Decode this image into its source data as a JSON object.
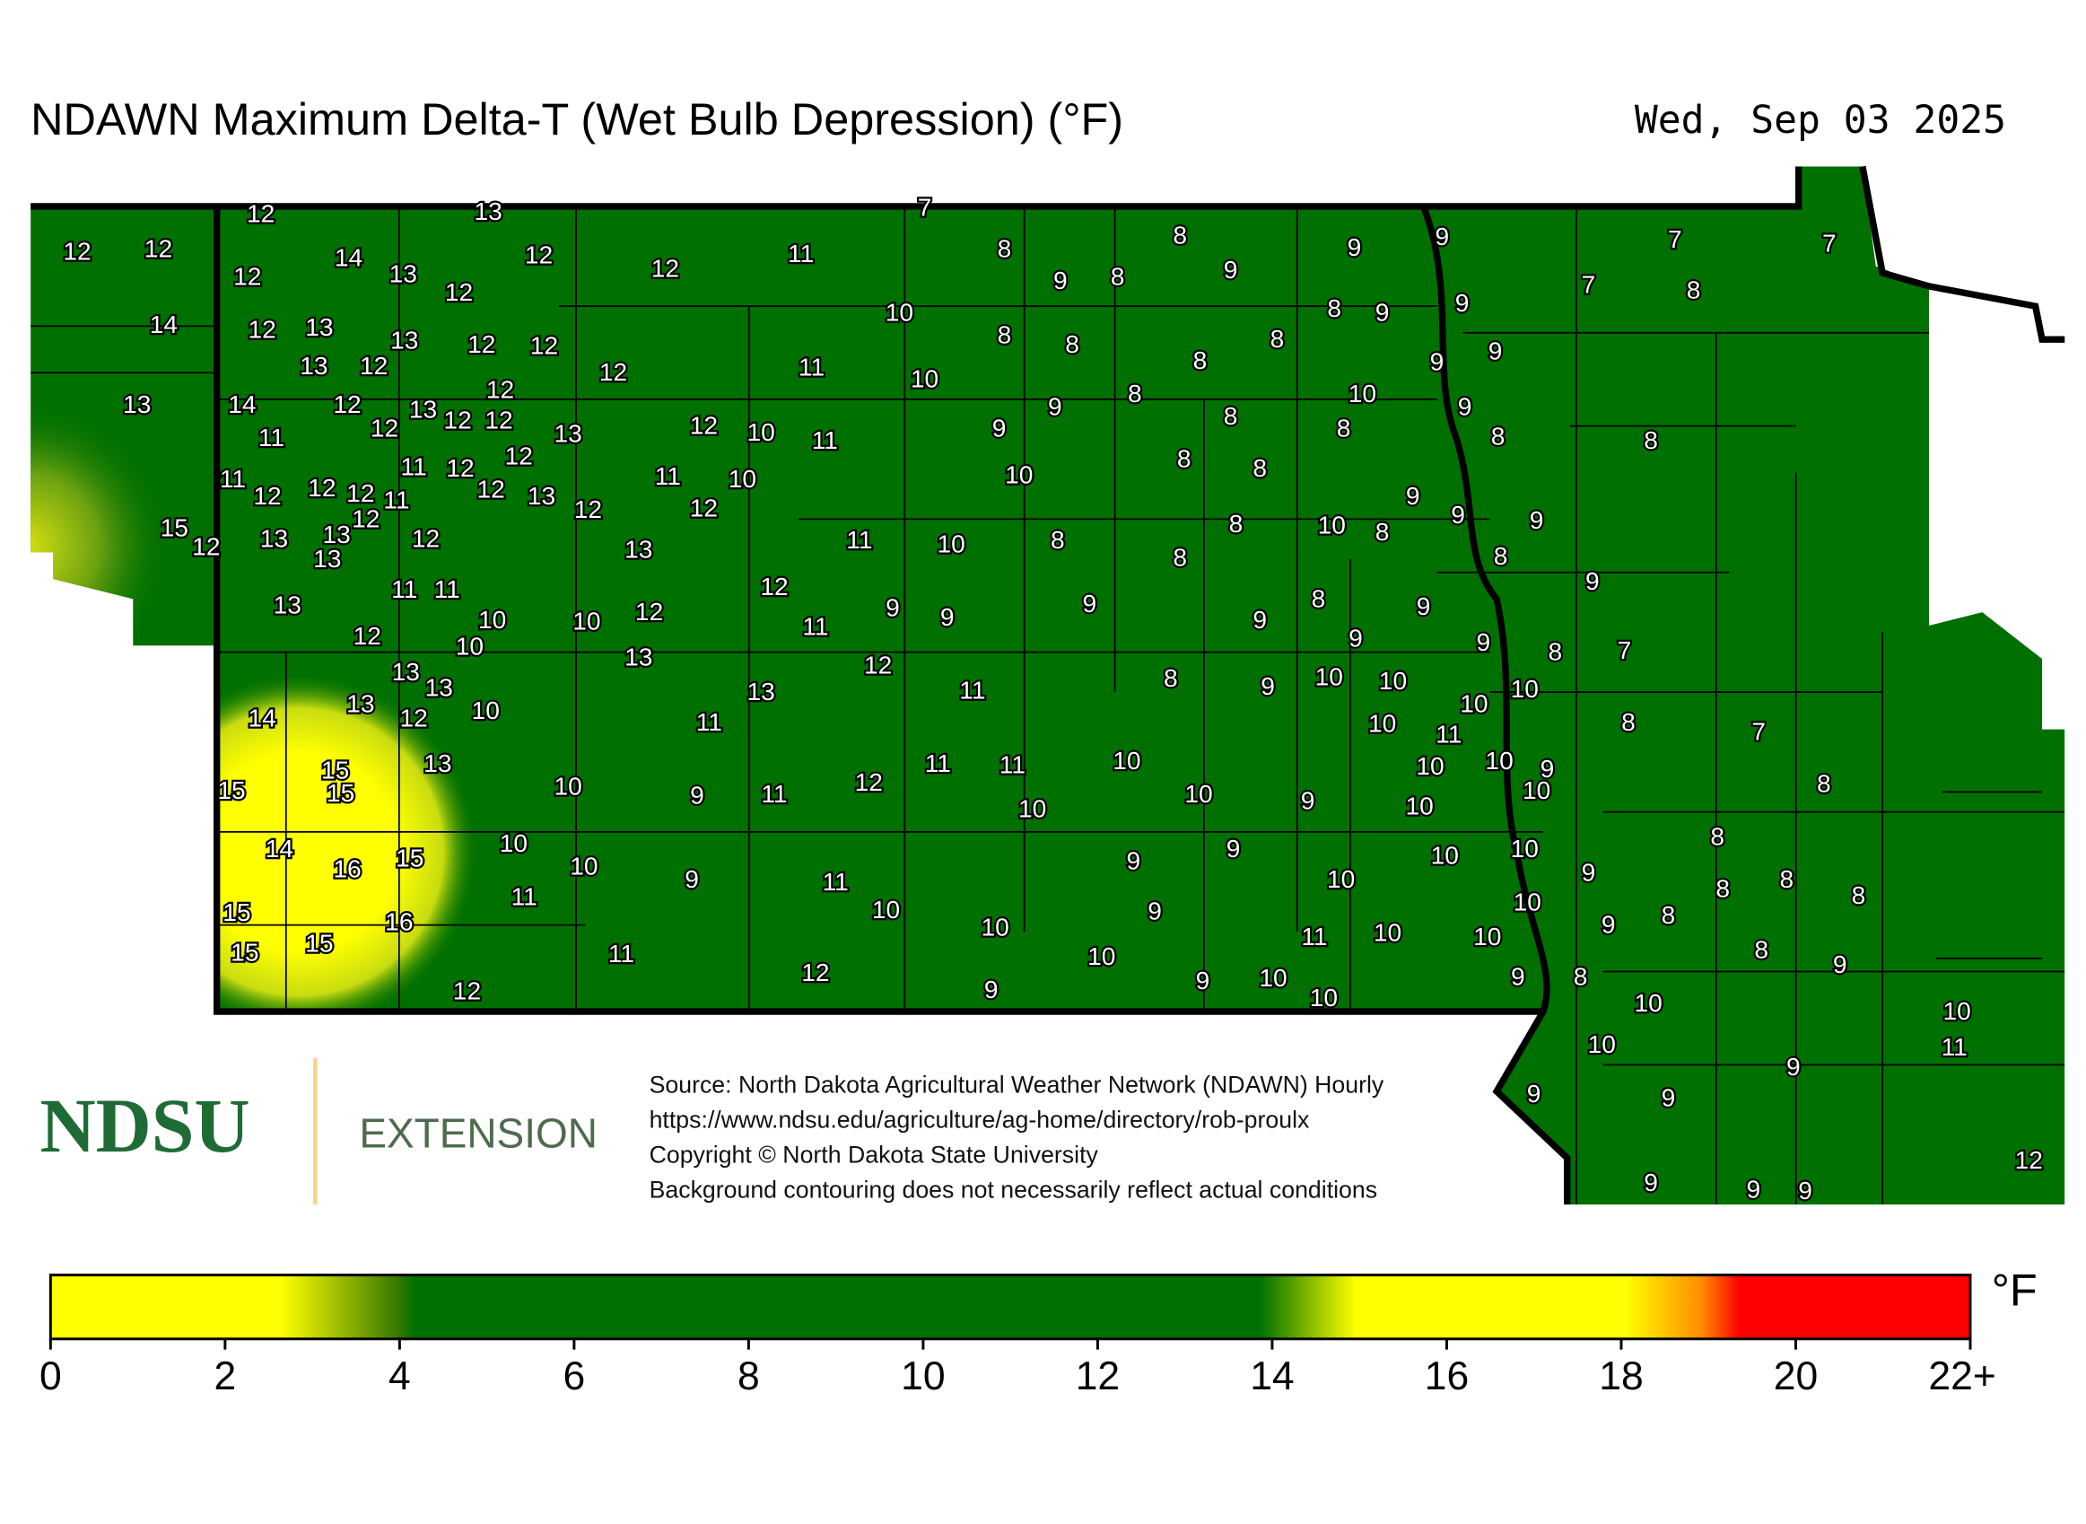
{
  "header": {
    "title": "NDAWN Maximum Delta-T (Wet Bulb Depression) (°F)",
    "date": "Wed, Sep 03 2025"
  },
  "map": {
    "stations": [
      12,
      13,
      7,
      12,
      12,
      14,
      12,
      13,
      12,
      12,
      12,
      11,
      8,
      8,
      9,
      9,
      7,
      7,
      9,
      8,
      9,
      7,
      8,
      9,
      8,
      9,
      10,
      14,
      12,
      13,
      13,
      12,
      12,
      8,
      8,
      8,
      13,
      12,
      12,
      11,
      10,
      8,
      9,
      9,
      13,
      14,
      12,
      12,
      13,
      12,
      12,
      12,
      13,
      12,
      10,
      11,
      11,
      9,
      9,
      8,
      10,
      9,
      8,
      8,
      8,
      8,
      11,
      12,
      12,
      12,
      11,
      11,
      12,
      12,
      12,
      13,
      12,
      11,
      10,
      12,
      10,
      8,
      8,
      9,
      9,
      9,
      15,
      12,
      13,
      13,
      12,
      13,
      12,
      13,
      11,
      10,
      8,
      8,
      8,
      10,
      8,
      8,
      9,
      13,
      11,
      11,
      10,
      10,
      12,
      12,
      11,
      9,
      9,
      9,
      9,
      8,
      9,
      12,
      10,
      13,
      9,
      9,
      8,
      7,
      14,
      13,
      13,
      13,
      12,
      10,
      13,
      11,
      12,
      11,
      8,
      9,
      10,
      10,
      10,
      10,
      10,
      11,
      8,
      7,
      15,
      15,
      15,
      13,
      10,
      9,
      11,
      12,
      11,
      11,
      10,
      10,
      10,
      9,
      10,
      10,
      9,
      10,
      10,
      8,
      14,
      16,
      15,
      10,
      10,
      9,
      11,
      9,
      9,
      10,
      10,
      10,
      9,
      8,
      8,
      8,
      8,
      15,
      15,
      15,
      16,
      11,
      10,
      10,
      9,
      10,
      9,
      8,
      11,
      10,
      11,
      10,
      10,
      8,
      9,
      12,
      12,
      9,
      9,
      10,
      10,
      9,
      8,
      10,
      10,
      10,
      11,
      9,
      9,
      9,
      12,
      9,
      9,
      9
    ]
  },
  "legend": {
    "unit": "°F",
    "lim": [
      0,
      22
    ],
    "ticks": [
      0,
      2,
      4,
      6,
      8,
      10,
      12,
      14,
      16,
      18,
      20,
      {
        "value": 22,
        "label": "22+"
      }
    ]
  },
  "footer": {
    "logo": "NDSU",
    "logo_sub": "EXTENSION",
    "notes": [
      "Source: North Dakota Agricultural Weather Network (NDAWN) Hourly",
      "https://www.ndsu.edu/agriculture/ag-home/directory/rob-proulx",
      "Copyright © North Dakota State University",
      "Background contouring does not necessarily reflect actual conditions"
    ]
  }
}
